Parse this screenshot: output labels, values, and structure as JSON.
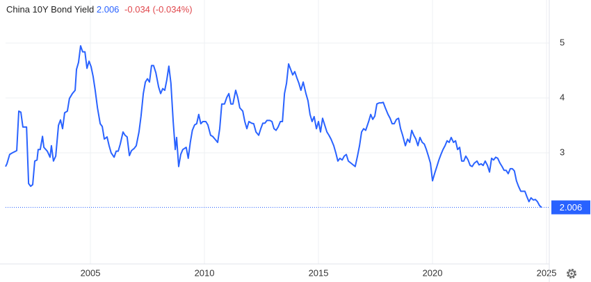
{
  "chart_data": {
    "type": "line",
    "title": "China 10Y Bond Yield",
    "last_value": 2.006,
    "change": "-0.034 (-0.034%)",
    "color": "#2962ff",
    "up_color": "#2962ff",
    "down_color": "#e0474c",
    "grid": true,
    "xlim": [
      2001.28,
      2025.12
    ],
    "xticks": [
      2005,
      2010,
      2015,
      2020,
      2025
    ],
    "ylim": [
      0.975,
      5.785
    ],
    "yticks": [
      3,
      4,
      5
    ],
    "x": [
      2001.28,
      2001.34,
      2001.46,
      2001.58,
      2001.77,
      2001.86,
      2001.95,
      2002.04,
      2002.2,
      2002.29,
      2002.38,
      2002.47,
      2002.56,
      2002.66,
      2002.71,
      2002.8,
      2002.9,
      2002.96,
      2003.11,
      2003.23,
      2003.29,
      2003.38,
      2003.48,
      2003.6,
      2003.69,
      2003.78,
      2003.87,
      2003.99,
      2004.08,
      2004.21,
      2004.33,
      2004.39,
      2004.48,
      2004.57,
      2004.66,
      2004.76,
      2004.85,
      2004.94,
      2005.03,
      2005.12,
      2005.21,
      2005.31,
      2005.43,
      2005.52,
      2005.61,
      2005.73,
      2005.82,
      2005.91,
      2006.04,
      2006.13,
      2006.22,
      2006.31,
      2006.43,
      2006.52,
      2006.61,
      2006.71,
      2006.8,
      2006.92,
      2007.01,
      2007.13,
      2007.22,
      2007.32,
      2007.41,
      2007.5,
      2007.59,
      2007.68,
      2007.77,
      2007.87,
      2007.99,
      2008.08,
      2008.17,
      2008.26,
      2008.35,
      2008.44,
      2008.53,
      2008.63,
      2008.72,
      2008.78,
      2008.87,
      2008.96,
      2009.05,
      2009.2,
      2009.29,
      2009.38,
      2009.47,
      2009.57,
      2009.66,
      2009.75,
      2009.84,
      2009.93,
      2010.06,
      2010.15,
      2010.27,
      2010.36,
      2010.46,
      2010.58,
      2010.67,
      2010.76,
      2010.88,
      2010.98,
      2011.07,
      2011.16,
      2011.25,
      2011.37,
      2011.46,
      2011.55,
      2011.68,
      2011.77,
      2011.86,
      2011.95,
      2012.07,
      2012.16,
      2012.26,
      2012.38,
      2012.47,
      2012.56,
      2012.65,
      2012.74,
      2012.87,
      2012.96,
      2013.05,
      2013.14,
      2013.23,
      2013.33,
      2013.42,
      2013.51,
      2013.6,
      2013.69,
      2013.78,
      2013.87,
      2013.96,
      2014.05,
      2014.14,
      2014.23,
      2014.33,
      2014.45,
      2014.54,
      2014.63,
      2014.72,
      2014.81,
      2014.91,
      2015.0,
      2015.09,
      2015.18,
      2015.27,
      2015.37,
      2015.46,
      2015.55,
      2015.67,
      2015.76,
      2015.85,
      2015.94,
      2016.04,
      2016.13,
      2016.22,
      2016.31,
      2016.43,
      2016.52,
      2016.61,
      2016.71,
      2016.8,
      2016.89,
      2016.98,
      2017.07,
      2017.2,
      2017.29,
      2017.38,
      2017.47,
      2017.56,
      2017.66,
      2017.75,
      2017.84,
      2017.93,
      2018.05,
      2018.14,
      2018.23,
      2018.32,
      2018.42,
      2018.51,
      2018.6,
      2018.69,
      2018.81,
      2018.91,
      2019.0,
      2019.09,
      2019.18,
      2019.27,
      2019.36,
      2019.45,
      2019.55,
      2019.64,
      2019.73,
      2019.82,
      2019.91,
      2020.0,
      2020.09,
      2020.19,
      2020.28,
      2020.37,
      2020.46,
      2020.55,
      2020.64,
      2020.73,
      2020.82,
      2020.92,
      2021.01,
      2021.1,
      2021.19,
      2021.28,
      2021.37,
      2021.46,
      2021.56,
      2021.65,
      2021.74,
      2021.83,
      2021.95,
      2022.04,
      2022.13,
      2022.22,
      2022.31,
      2022.41,
      2022.5,
      2022.59,
      2022.68,
      2022.77,
      2022.86,
      2022.96,
      2023.05,
      2023.14,
      2023.23,
      2023.32,
      2023.41,
      2023.5,
      2023.59,
      2023.68,
      2023.77,
      2023.87,
      2023.96,
      2024.05,
      2024.14,
      2024.23,
      2024.32,
      2024.42,
      2024.51,
      2024.6,
      2024.69,
      2024.78
    ],
    "values": [
      2.75,
      2.8,
      2.97,
      3.0,
      3.04,
      3.76,
      3.74,
      3.47,
      3.47,
      2.44,
      2.39,
      2.42,
      2.85,
      2.87,
      3.06,
      3.06,
      3.3,
      3.1,
      3.03,
      2.92,
      3.13,
      2.85,
      2.94,
      3.5,
      3.6,
      3.44,
      3.73,
      3.76,
      3.99,
      4.08,
      4.14,
      4.52,
      4.65,
      4.95,
      4.84,
      4.84,
      4.54,
      4.67,
      4.57,
      4.39,
      4.14,
      3.82,
      3.53,
      3.48,
      3.25,
      3.29,
      3.13,
      3.0,
      2.92,
      3.03,
      3.03,
      3.16,
      3.38,
      3.32,
      3.29,
      2.95,
      3.04,
      3.08,
      3.13,
      3.38,
      3.67,
      4.08,
      4.29,
      4.35,
      4.29,
      4.59,
      4.59,
      4.46,
      4.2,
      4.08,
      4.17,
      4.14,
      4.33,
      4.58,
      4.27,
      3.57,
      3.06,
      3.28,
      2.75,
      2.97,
      3.06,
      3.1,
      2.9,
      3.19,
      3.41,
      3.51,
      3.53,
      3.7,
      3.53,
      3.57,
      3.57,
      3.51,
      3.32,
      3.3,
      3.25,
      3.19,
      3.44,
      3.89,
      3.89,
      4.01,
      4.08,
      3.89,
      3.89,
      4.14,
      4.01,
      3.82,
      3.76,
      3.57,
      3.44,
      3.57,
      3.54,
      3.53,
      3.38,
      3.32,
      3.44,
      3.54,
      3.54,
      3.59,
      3.59,
      3.57,
      3.44,
      3.41,
      3.47,
      3.57,
      3.57,
      4.08,
      4.27,
      4.62,
      4.52,
      4.42,
      4.48,
      4.37,
      4.27,
      4.14,
      4.29,
      4.08,
      3.95,
      3.7,
      3.57,
      3.66,
      3.44,
      3.57,
      3.38,
      3.63,
      3.51,
      3.38,
      3.32,
      3.25,
      3.13,
      3.0,
      2.85,
      2.9,
      2.87,
      2.94,
      2.97,
      2.85,
      2.81,
      2.78,
      2.75,
      2.94,
      3.13,
      3.38,
      3.44,
      3.41,
      3.57,
      3.7,
      3.61,
      3.67,
      3.89,
      3.91,
      3.91,
      3.92,
      3.82,
      3.7,
      3.63,
      3.53,
      3.53,
      3.61,
      3.63,
      3.44,
      3.32,
      3.13,
      3.25,
      3.19,
      3.41,
      3.32,
      3.25,
      3.13,
      3.28,
      3.19,
      3.16,
      3.06,
      2.94,
      2.81,
      2.49,
      2.62,
      2.75,
      2.87,
      2.97,
      3.06,
      3.13,
      3.22,
      3.19,
      3.28,
      3.19,
      3.22,
      3.06,
      3.1,
      2.85,
      2.85,
      2.94,
      2.87,
      2.77,
      2.75,
      2.81,
      2.85,
      2.78,
      2.8,
      2.77,
      2.85,
      2.77,
      2.65,
      2.9,
      2.87,
      2.92,
      2.9,
      2.81,
      2.75,
      2.68,
      2.68,
      2.62,
      2.71,
      2.71,
      2.67,
      2.49,
      2.39,
      2.3,
      2.3,
      2.3,
      2.2,
      2.11,
      2.18,
      2.14,
      2.15,
      2.11,
      2.04,
      2.006
    ]
  }
}
